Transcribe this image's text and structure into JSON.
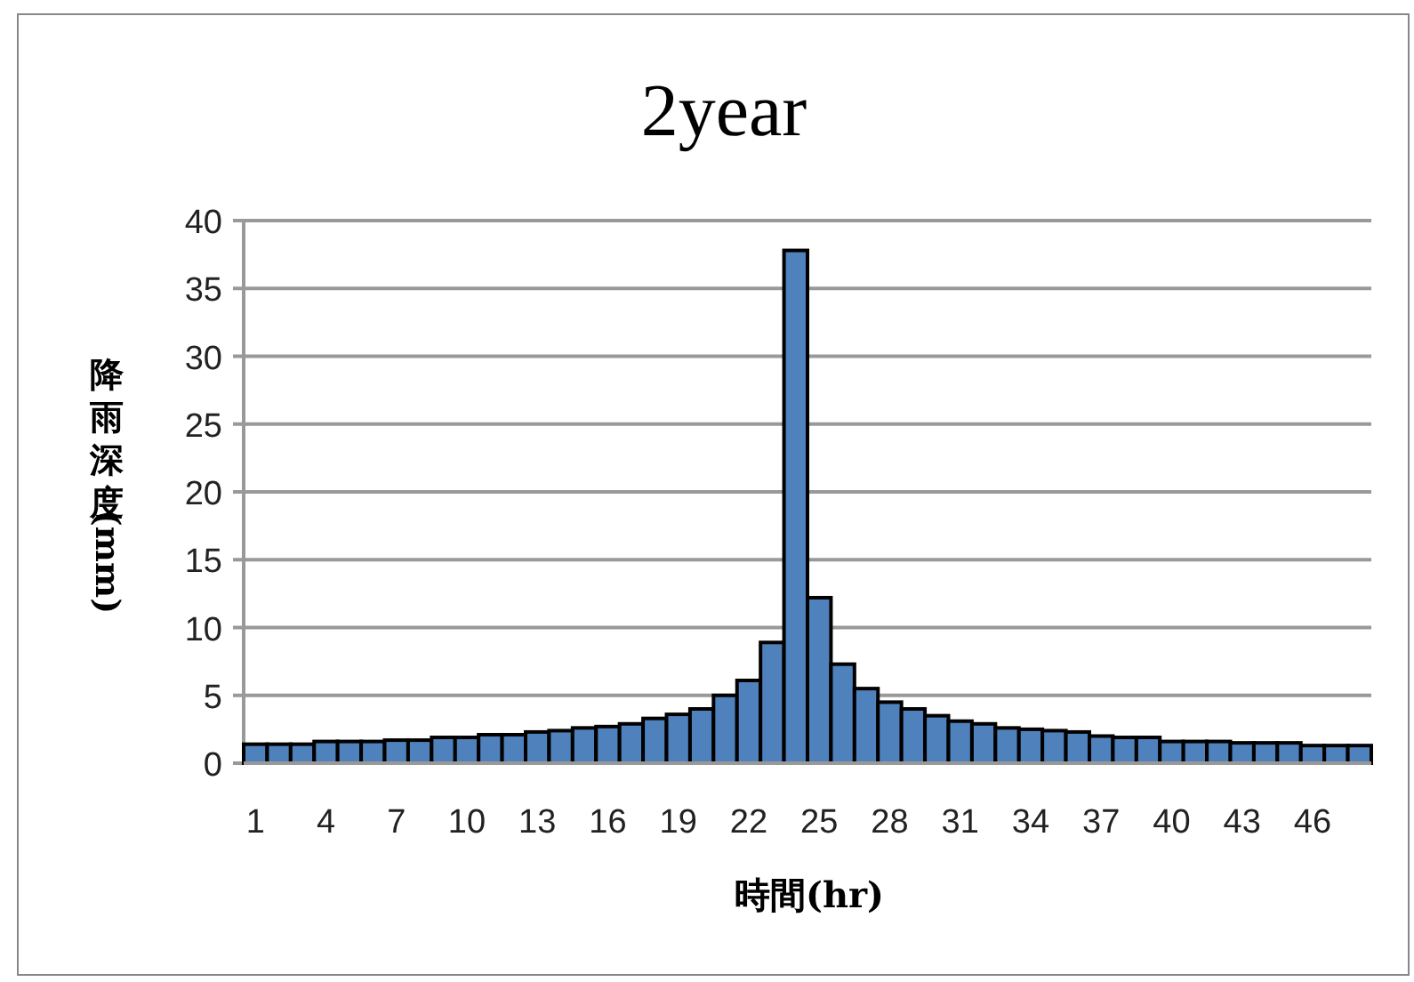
{
  "chart_data": {
    "type": "bar",
    "title": "2year",
    "xlabel": "時間(hr)",
    "ylabel": "降雨深度(mm)",
    "categories": [
      "1",
      null,
      null,
      "4",
      null,
      null,
      "7",
      null,
      null,
      "10",
      null,
      null,
      "13",
      null,
      null,
      "16",
      null,
      null,
      "19",
      null,
      null,
      "22",
      null,
      null,
      "25",
      null,
      null,
      "28",
      null,
      null,
      "31",
      null,
      null,
      "34",
      null,
      null,
      "37",
      null,
      null,
      "40",
      null,
      null,
      "43",
      null,
      null,
      "46",
      null,
      null
    ],
    "values": [
      1.4,
      1.4,
      1.4,
      1.6,
      1.6,
      1.6,
      1.7,
      1.7,
      1.9,
      1.9,
      2.1,
      2.1,
      2.3,
      2.4,
      2.6,
      2.7,
      2.9,
      3.3,
      3.6,
      4,
      5,
      6.1,
      8.9,
      37.8,
      12.2,
      7.3,
      5.5,
      4.5,
      4,
      3.5,
      3.1,
      2.9,
      2.6,
      2.5,
      2.4,
      2.3,
      2,
      1.9,
      1.9,
      1.6,
      1.6,
      1.6,
      1.5,
      1.5,
      1.5,
      1.3,
      1.3,
      1.3
    ],
    "color": "#4f81bd",
    "ylim": [
      0,
      40
    ],
    "yticks": [
      0,
      5,
      10,
      15,
      20,
      25,
      30,
      35,
      40
    ],
    "grid": "y"
  }
}
